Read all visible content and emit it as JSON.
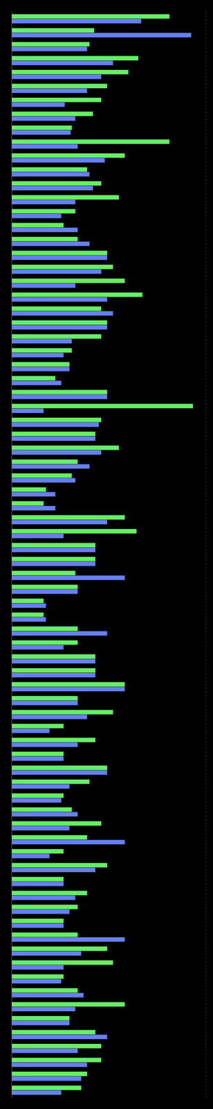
{
  "chart_data": {
    "type": "bar",
    "orientation": "horizontal",
    "tick_labels": false,
    "grid": false,
    "xlim": [
      0,
      330
    ],
    "series": [
      {
        "color": "#6680ee",
        "values": [
          220,
          305,
          128,
          172,
          152,
          128,
          90,
          108,
          100,
          112,
          158,
          132,
          138,
          108,
          84,
          112,
          132,
          162,
          152,
          108,
          162,
          172,
          162,
          102,
          88,
          98,
          84,
          162,
          54,
          148,
          142,
          152,
          132,
          108,
          74,
          74,
          162,
          88,
          142,
          142,
          192,
          112,
          58,
          58,
          162,
          88,
          142,
          142,
          192,
          112,
          128,
          64,
          112,
          88,
          162,
          98,
          84,
          112,
          98,
          192,
          64,
          142,
          88,
          108,
          98,
          88,
          192,
          118,
          88,
          84,
          122,
          108,
          98,
          162,
          112,
          128,
          118,
          84
        ]
      },
      {
        "color": "#66ee66",
        "values": [
          268,
          140,
          132,
          215,
          198,
          162,
          152,
          138,
          102,
          268,
          192,
          128,
          152,
          182,
          108,
          88,
          112,
          162,
          172,
          192,
          222,
          152,
          162,
          152,
          102,
          98,
          74,
          162,
          308,
          152,
          142,
          182,
          112,
          102,
          58,
          54,
          192,
          212,
          142,
          142,
          108,
          112,
          54,
          54,
          112,
          112,
          142,
          142,
          192,
          112,
          172,
          88,
          142,
          88,
          162,
          132,
          88,
          102,
          152,
          128,
          88,
          162,
          88,
          128,
          112,
          88,
          112,
          162,
          172,
          88,
          112,
          192,
          98,
          142,
          152,
          152,
          128,
          118
        ]
      }
    ]
  }
}
